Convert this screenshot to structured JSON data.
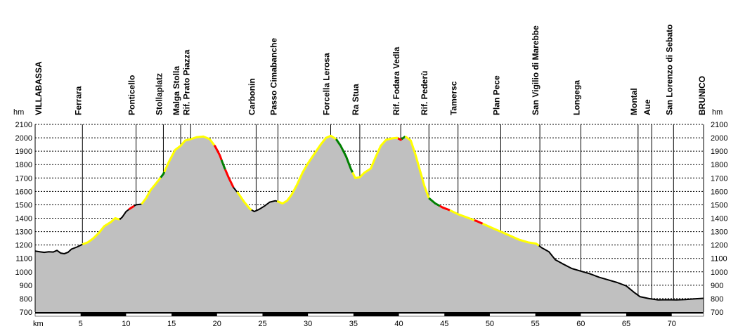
{
  "chart_data": {
    "type": "area",
    "x_unit": "km",
    "y_unit": "hm",
    "xlim": [
      0,
      73.5
    ],
    "ylim": [
      700,
      2100
    ],
    "x_ticks": [
      5,
      10,
      15,
      20,
      25,
      30,
      35,
      40,
      45,
      50,
      55,
      60,
      65,
      70
    ],
    "y_ticks": [
      700,
      800,
      900,
      1000,
      1100,
      1200,
      1300,
      1400,
      1500,
      1600,
      1700,
      1800,
      1900,
      2000,
      2100
    ],
    "grid": true,
    "colors": {
      "area_fill": "#c0c0c0",
      "road": "#000000",
      "easy": "#ffff00",
      "medium": "#008000",
      "hard": "#ff0000"
    },
    "places": [
      {
        "name": "VILLABASSA",
        "km": 0
      },
      {
        "name": "Ferrara",
        "km": 5.2
      },
      {
        "name": "Ponticello",
        "km": 11.1
      },
      {
        "name": "Stollaplatz",
        "km": 14.1
      },
      {
        "name": "Malga Stolla",
        "km": 16.0
      },
      {
        "name": "Rif. Prato Piazza",
        "km": 17.1
      },
      {
        "name": "Carbonin",
        "km": 24.3
      },
      {
        "name": "Passo Cimabanche",
        "km": 26.7
      },
      {
        "name": "Forcella Lerosa",
        "km": 32.5
      },
      {
        "name": "Ra Stua",
        "km": 35.7
      },
      {
        "name": "Rif. Fodara Vedla",
        "km": 40.2
      },
      {
        "name": "Rif. Pederù",
        "km": 43.3
      },
      {
        "name": "Tamersc",
        "km": 46.5
      },
      {
        "name": "Plan Pece",
        "km": 51.2
      },
      {
        "name": "San Vigilio di Marebbe",
        "km": 55.5
      },
      {
        "name": "Longega",
        "km": 60.0
      },
      {
        "name": "Montal",
        "km": 66.3
      },
      {
        "name": "Aue",
        "km": 67.8
      },
      {
        "name": "San Lorenzo di Sebato",
        "km": 70.2
      },
      {
        "name": "BRUNICO",
        "km": 73.3
      }
    ],
    "profile": [
      {
        "km": 0,
        "alt": 1155
      },
      {
        "km": 0.5,
        "alt": 1150
      },
      {
        "km": 1,
        "alt": 1145
      },
      {
        "km": 1.5,
        "alt": 1150
      },
      {
        "km": 2,
        "alt": 1148
      },
      {
        "km": 2.4,
        "alt": 1160
      },
      {
        "km": 2.8,
        "alt": 1140
      },
      {
        "km": 3.2,
        "alt": 1135
      },
      {
        "km": 3.6,
        "alt": 1145
      },
      {
        "km": 4,
        "alt": 1170
      },
      {
        "km": 4.6,
        "alt": 1185
      },
      {
        "km": 5.2,
        "alt": 1205
      },
      {
        "km": 5.8,
        "alt": 1220
      },
      {
        "km": 6.4,
        "alt": 1250
      },
      {
        "km": 7,
        "alt": 1290
      },
      {
        "km": 7.6,
        "alt": 1340
      },
      {
        "km": 8.3,
        "alt": 1370
      },
      {
        "km": 8.8,
        "alt": 1400
      },
      {
        "km": 9.3,
        "alt": 1390
      },
      {
        "km": 9.6,
        "alt": 1410
      },
      {
        "km": 10,
        "alt": 1450
      },
      {
        "km": 10.5,
        "alt": 1475
      },
      {
        "km": 11.1,
        "alt": 1500
      },
      {
        "km": 11.7,
        "alt": 1505
      },
      {
        "km": 12.2,
        "alt": 1550
      },
      {
        "km": 12.7,
        "alt": 1610
      },
      {
        "km": 13.3,
        "alt": 1660
      },
      {
        "km": 14.1,
        "alt": 1730
      },
      {
        "km": 14.7,
        "alt": 1820
      },
      {
        "km": 15.4,
        "alt": 1910
      },
      {
        "km": 16,
        "alt": 1940
      },
      {
        "km": 16.5,
        "alt": 1980
      },
      {
        "km": 17.1,
        "alt": 1990
      },
      {
        "km": 17.8,
        "alt": 2005
      },
      {
        "km": 18.5,
        "alt": 2010
      },
      {
        "km": 19.2,
        "alt": 1990
      },
      {
        "km": 19.8,
        "alt": 1935
      },
      {
        "km": 20.3,
        "alt": 1870
      },
      {
        "km": 20.8,
        "alt": 1780
      },
      {
        "km": 21.3,
        "alt": 1700
      },
      {
        "km": 21.8,
        "alt": 1630
      },
      {
        "km": 22.4,
        "alt": 1580
      },
      {
        "km": 23,
        "alt": 1520
      },
      {
        "km": 23.6,
        "alt": 1470
      },
      {
        "km": 24.1,
        "alt": 1450
      },
      {
        "km": 24.6,
        "alt": 1465
      },
      {
        "km": 25.2,
        "alt": 1490
      },
      {
        "km": 25.8,
        "alt": 1520
      },
      {
        "km": 26.4,
        "alt": 1530
      },
      {
        "km": 26.7,
        "alt": 1525
      },
      {
        "km": 27.2,
        "alt": 1510
      },
      {
        "km": 27.7,
        "alt": 1530
      },
      {
        "km": 28.2,
        "alt": 1575
      },
      {
        "km": 28.8,
        "alt": 1650
      },
      {
        "km": 29.4,
        "alt": 1740
      },
      {
        "km": 30,
        "alt": 1810
      },
      {
        "km": 30.7,
        "alt": 1880
      },
      {
        "km": 31.4,
        "alt": 1950
      },
      {
        "km": 32,
        "alt": 2000
      },
      {
        "km": 32.5,
        "alt": 2015
      },
      {
        "km": 33.1,
        "alt": 1990
      },
      {
        "km": 33.6,
        "alt": 1940
      },
      {
        "km": 34.2,
        "alt": 1860
      },
      {
        "km": 34.7,
        "alt": 1770
      },
      {
        "km": 35.2,
        "alt": 1700
      },
      {
        "km": 35.7,
        "alt": 1705
      },
      {
        "km": 36.2,
        "alt": 1740
      },
      {
        "km": 36.9,
        "alt": 1770
      },
      {
        "km": 37.4,
        "alt": 1850
      },
      {
        "km": 38,
        "alt": 1940
      },
      {
        "km": 38.6,
        "alt": 1985
      },
      {
        "km": 39.2,
        "alt": 1995
      },
      {
        "km": 39.8,
        "alt": 2000
      },
      {
        "km": 40.2,
        "alt": 1985
      },
      {
        "km": 40.7,
        "alt": 2010
      },
      {
        "km": 41.3,
        "alt": 1980
      },
      {
        "km": 41.8,
        "alt": 1880
      },
      {
        "km": 42.3,
        "alt": 1760
      },
      {
        "km": 42.8,
        "alt": 1640
      },
      {
        "km": 43.3,
        "alt": 1550
      },
      {
        "km": 44,
        "alt": 1510
      },
      {
        "km": 44.8,
        "alt": 1480
      },
      {
        "km": 45.6,
        "alt": 1460
      },
      {
        "km": 46.5,
        "alt": 1430
      },
      {
        "km": 47.5,
        "alt": 1405
      },
      {
        "km": 48.5,
        "alt": 1380
      },
      {
        "km": 49.5,
        "alt": 1350
      },
      {
        "km": 50.5,
        "alt": 1320
      },
      {
        "km": 51.2,
        "alt": 1300
      },
      {
        "km": 52.2,
        "alt": 1270
      },
      {
        "km": 53.2,
        "alt": 1240
      },
      {
        "km": 54.2,
        "alt": 1220
      },
      {
        "km": 55.1,
        "alt": 1210
      },
      {
        "km": 55.7,
        "alt": 1180
      },
      {
        "km": 56.5,
        "alt": 1150
      },
      {
        "km": 57.2,
        "alt": 1090
      },
      {
        "km": 58,
        "alt": 1060
      },
      {
        "km": 59,
        "alt": 1025
      },
      {
        "km": 60,
        "alt": 1005
      },
      {
        "km": 61,
        "alt": 985
      },
      {
        "km": 62,
        "alt": 960
      },
      {
        "km": 63,
        "alt": 940
      },
      {
        "km": 64,
        "alt": 920
      },
      {
        "km": 65,
        "alt": 895
      },
      {
        "km": 65.8,
        "alt": 850
      },
      {
        "km": 66.5,
        "alt": 815
      },
      {
        "km": 67.5,
        "alt": 800
      },
      {
        "km": 68.5,
        "alt": 790
      },
      {
        "km": 69.5,
        "alt": 792
      },
      {
        "km": 70.5,
        "alt": 790
      },
      {
        "km": 71.5,
        "alt": 793
      },
      {
        "km": 72.5,
        "alt": 798
      },
      {
        "km": 73.5,
        "alt": 802
      }
    ],
    "segments": [
      {
        "from": 0,
        "to": 5.2,
        "difficulty": "road"
      },
      {
        "from": 5.2,
        "to": 9.3,
        "difficulty": "easy"
      },
      {
        "from": 9.3,
        "to": 10.3,
        "difficulty": "road"
      },
      {
        "from": 10.3,
        "to": 10.9,
        "difficulty": "hard"
      },
      {
        "from": 10.9,
        "to": 11.7,
        "difficulty": "road"
      },
      {
        "from": 11.7,
        "to": 13.8,
        "difficulty": "easy"
      },
      {
        "from": 13.8,
        "to": 14.2,
        "difficulty": "medium"
      },
      {
        "from": 14.2,
        "to": 19.7,
        "difficulty": "easy"
      },
      {
        "from": 19.7,
        "to": 20.5,
        "difficulty": "hard"
      },
      {
        "from": 20.5,
        "to": 20.9,
        "difficulty": "medium"
      },
      {
        "from": 20.9,
        "to": 21.8,
        "difficulty": "hard"
      },
      {
        "from": 21.8,
        "to": 22.2,
        "difficulty": "road"
      },
      {
        "from": 22.2,
        "to": 23.8,
        "difficulty": "easy"
      },
      {
        "from": 23.8,
        "to": 26.6,
        "difficulty": "road"
      },
      {
        "from": 26.6,
        "to": 33.1,
        "difficulty": "easy"
      },
      {
        "from": 33.1,
        "to": 34.9,
        "difficulty": "medium"
      },
      {
        "from": 34.9,
        "to": 39.9,
        "difficulty": "easy"
      },
      {
        "from": 39.9,
        "to": 40.3,
        "difficulty": "hard"
      },
      {
        "from": 40.3,
        "to": 40.7,
        "difficulty": "medium"
      },
      {
        "from": 40.7,
        "to": 43.3,
        "difficulty": "easy"
      },
      {
        "from": 43.3,
        "to": 44.5,
        "difficulty": "medium"
      },
      {
        "from": 44.5,
        "to": 45.6,
        "difficulty": "hard"
      },
      {
        "from": 45.6,
        "to": 48.3,
        "difficulty": "easy"
      },
      {
        "from": 48.3,
        "to": 49.2,
        "difficulty": "hard"
      },
      {
        "from": 49.2,
        "to": 55.4,
        "difficulty": "easy"
      },
      {
        "from": 55.4,
        "to": 73.5,
        "difficulty": "road"
      }
    ]
  }
}
